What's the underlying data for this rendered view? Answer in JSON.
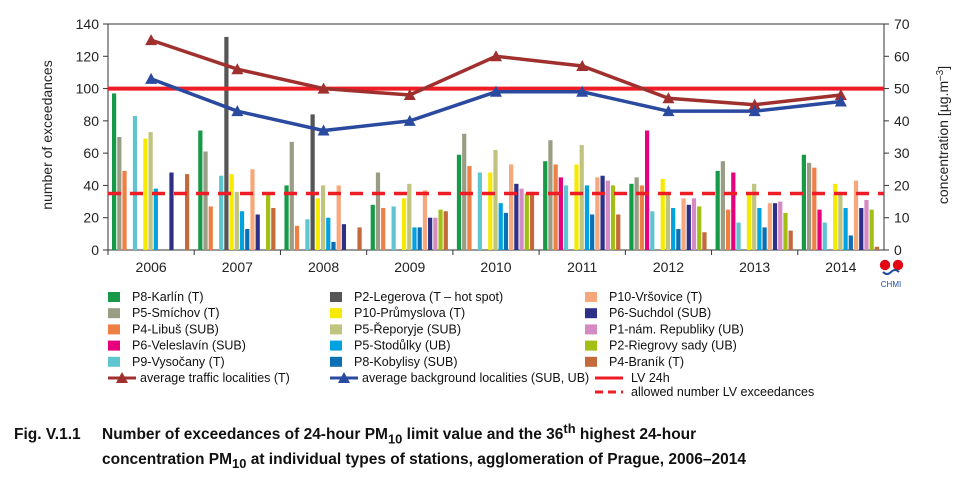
{
  "chart_data": {
    "type": "bar",
    "categories": [
      "2006",
      "2007",
      "2008",
      "2009",
      "2010",
      "2011",
      "2012",
      "2013",
      "2014"
    ],
    "ylabel": "number of exceedances",
    "y2label": "concentration [µg.m⁻³]",
    "ylim": [
      0,
      140
    ],
    "y2lim": [
      0,
      70
    ],
    "yticks": [
      "0",
      "20",
      "40",
      "60",
      "80",
      "100",
      "120",
      "140"
    ],
    "y2ticks": [
      "0",
      "10",
      "20",
      "30",
      "40",
      "50",
      "60",
      "70"
    ],
    "series": [
      {
        "name": "P8-Karlín (T)",
        "color": "#169a48",
        "values": [
          97,
          74,
          40,
          28,
          59,
          55,
          41,
          49,
          59
        ]
      },
      {
        "name": "P5-Smíchov (T)",
        "color": "#9a9c84",
        "values": [
          70,
          61,
          67,
          48,
          72,
          68,
          45,
          55,
          54
        ]
      },
      {
        "name": "P4-Libuš (SUB)",
        "color": "#ee7f45",
        "values": [
          49,
          27,
          15,
          26,
          52,
          53,
          40,
          25,
          51
        ]
      },
      {
        "name": "P6-Veleslavín (SUB)",
        "color": "#e6007e",
        "values": [
          null,
          null,
          null,
          null,
          null,
          45,
          74,
          48,
          25
        ]
      },
      {
        "name": "P9-Vysočany (T)",
        "color": "#5fc6d0",
        "values": [
          83,
          46,
          19,
          27,
          48,
          40,
          24,
          17,
          17
        ]
      },
      {
        "name": "P2-Legerova (T – hot spot)",
        "color": "#565656",
        "values": [
          null,
          132,
          84,
          null,
          null,
          null,
          null,
          null,
          null
        ]
      },
      {
        "name": "P10-Průmyslova (T)",
        "color": "#f5ea00",
        "values": [
          69,
          47,
          32,
          32,
          48,
          53,
          44,
          35,
          41
        ]
      },
      {
        "name": "P5-Řeporyje (SUB)",
        "color": "#c1c47f",
        "values": [
          73,
          36,
          40,
          41,
          62,
          65,
          36,
          41,
          36
        ]
      },
      {
        "name": "P5-Stodůlky (UB)",
        "color": "#00a3e0",
        "values": [
          38,
          24,
          20,
          14,
          29,
          40,
          26,
          26,
          26
        ]
      },
      {
        "name": "P8-Kobylisy (SUB)",
        "color": "#0a6fb5",
        "values": [
          null,
          13,
          5,
          14,
          23,
          22,
          13,
          14,
          9
        ]
      },
      {
        "name": "P10-Vršovice (T)",
        "color": "#f6a87c",
        "values": [
          null,
          50,
          40,
          37,
          53,
          45,
          32,
          29,
          43
        ]
      },
      {
        "name": "P6-Suchdol (SUB)",
        "color": "#2e2f86",
        "values": [
          48,
          22,
          16,
          20,
          41,
          46,
          28,
          29,
          26
        ]
      },
      {
        "name": "P1-nám. Republiky (UB)",
        "color": "#d48ac2",
        "values": [
          null,
          null,
          null,
          20,
          38,
          43,
          32,
          30,
          31
        ]
      },
      {
        "name": "P2-Riegrovy sady (UB)",
        "color": "#a3be14",
        "values": [
          null,
          34,
          null,
          25,
          35,
          40,
          27,
          23,
          25
        ]
      },
      {
        "name": "P4-Braník (T)",
        "color": "#c4693a",
        "values": [
          47,
          26,
          14,
          24,
          36,
          22,
          11,
          12,
          2
        ]
      }
    ],
    "lines": [
      {
        "name": "average traffic localities  (T)",
        "color": "#a0302e",
        "axis": "right",
        "values": [
          65,
          56,
          50,
          48,
          60,
          57,
          47,
          45,
          48
        ]
      },
      {
        "name": "average background localities  (SUB, UB)",
        "color": "#2a4aa0",
        "axis": "right",
        "values": [
          53,
          43,
          37,
          40,
          49,
          49,
          43,
          43,
          46
        ]
      }
    ],
    "reference_lines": [
      {
        "name": "LV 24h",
        "color": "#ee1c24",
        "style": "solid",
        "axis": "right",
        "value": 50
      },
      {
        "name": "allowed number LV exceedances",
        "color": "#ee1c24",
        "style": "dashed",
        "axis": "left",
        "value": 35
      }
    ]
  },
  "logo": {
    "label": "CHMI"
  },
  "caption": {
    "label": "Fig. V.1.1",
    "line1_a": "Number of exceedances of 24-hour PM",
    "line1_sub": "10",
    "line1_b": " limit value and the 36",
    "line1_sup": "th",
    "line1_c": " highest 24-hour",
    "line2_a": "concentration PM",
    "line2_sub": "10",
    "line2_b": " at individual types of stations, agglomeration of Prague, 2006–2014"
  }
}
